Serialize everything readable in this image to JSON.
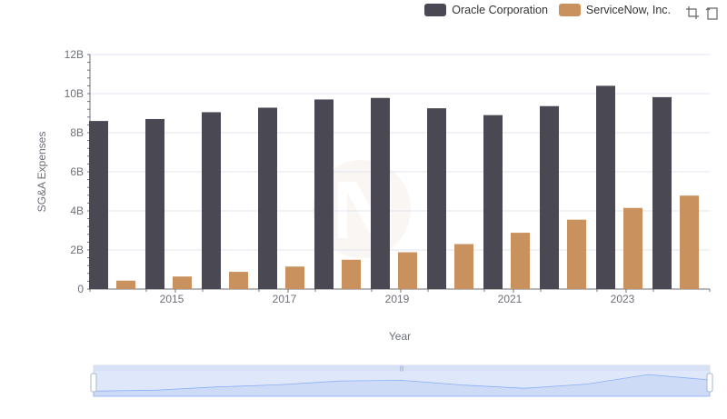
{
  "legend": [
    {
      "name": "Oracle Corporation",
      "color": "#4a4953"
    },
    {
      "name": "ServiceNow, Inc.",
      "color": "#c8915e"
    }
  ],
  "toolbox": [
    {
      "icon": "zoom-icon"
    },
    {
      "icon": "zoom-reset-icon"
    }
  ],
  "chart_data": {
    "type": "bar",
    "xlabel": "Year",
    "ylabel": "SG&A Expenses",
    "categories": [
      "2014",
      "2015",
      "2016",
      "2017",
      "2018",
      "2019",
      "2020",
      "2021",
      "2022",
      "2023",
      "2024"
    ],
    "x_tick_labels": [
      "2015",
      "2017",
      "2019",
      "2021",
      "2023"
    ],
    "y_tick_labels": [
      "0",
      "2B",
      "4B",
      "6B",
      "8B",
      "10B",
      "12B"
    ],
    "ylim": [
      0,
      12000000000
    ],
    "grid": true,
    "legend_position": "top-right",
    "series": [
      {
        "name": "Oracle Corporation",
        "color": "#4a4953",
        "values": [
          8600000000,
          8700000000,
          9050000000,
          9280000000,
          9700000000,
          9780000000,
          9250000000,
          8900000000,
          9360000000,
          10400000000,
          9820000000
        ]
      },
      {
        "name": "ServiceNow, Inc.",
        "color": "#c8915e",
        "values": [
          430000000,
          640000000,
          880000000,
          1150000000,
          1500000000,
          1880000000,
          2300000000,
          2880000000,
          3550000000,
          4150000000,
          4780000000
        ]
      }
    ]
  }
}
